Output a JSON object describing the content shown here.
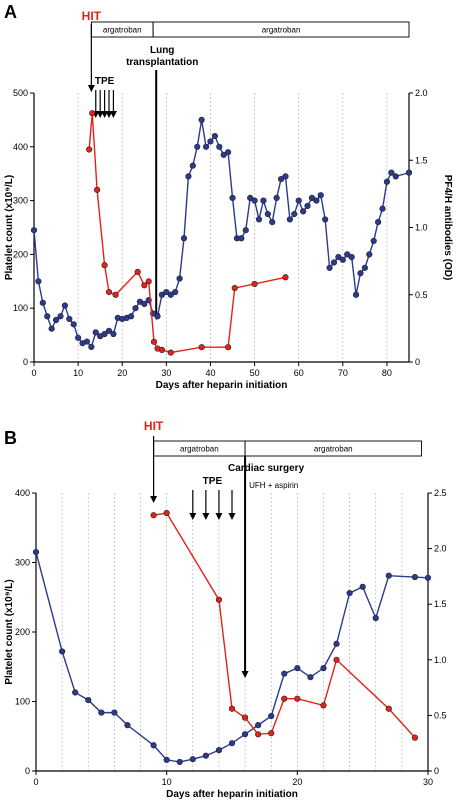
{
  "colors": {
    "platelet": "#2b3a8f",
    "antibody": "#e32219",
    "grid": "#b5b5b5",
    "hit": "#e32219"
  },
  "chart_data": [
    {
      "type": "line",
      "panel": "A",
      "xlabel": "Days after heparin initiation",
      "ylabel_left": "Platelet count (x10⁹/L)",
      "ylabel_right": "PF4/H antibodies (OD)",
      "xlim": [
        0,
        85
      ],
      "xticks": [
        0,
        10,
        20,
        30,
        40,
        50,
        60,
        70,
        80
      ],
      "ylim_left": [
        0,
        500
      ],
      "yticks_left": [
        0,
        100,
        200,
        300,
        400,
        500
      ],
      "ylim_right": [
        0,
        2.0
      ],
      "yticks_right": [
        "0",
        "0.5",
        "1.0",
        "1.5",
        "2.0"
      ],
      "grid_x": [
        10,
        20,
        30,
        40,
        50,
        60,
        70,
        80
      ],
      "treatment_bars": [
        {
          "label": "argatroban",
          "from": 13,
          "to": 27
        },
        {
          "label": "argatroban",
          "from": 27,
          "to": 85
        }
      ],
      "annotations": {
        "hit_label": "HIT",
        "hit_day": 13,
        "tpe_label": "TPE",
        "tpe_days": [
          14,
          15,
          16,
          17,
          18
        ],
        "surgery_label_1": "Lung",
        "surgery_label_2": "transplantation",
        "surgery_day": 27.7
      },
      "series": [
        {
          "role": "platelet",
          "axis": "left",
          "x": [
            0,
            1,
            2,
            3,
            4,
            5,
            6,
            7,
            8,
            9,
            10,
            11,
            12,
            13,
            14,
            15,
            16,
            17,
            18,
            19,
            20,
            21,
            22,
            23,
            24,
            25,
            26,
            27,
            28,
            29,
            30,
            31,
            32,
            33,
            34,
            35,
            36,
            37,
            38,
            39,
            40,
            41,
            42,
            43,
            44,
            45,
            46,
            47,
            48,
            49,
            50,
            51,
            52,
            53,
            54,
            55,
            56,
            57,
            58,
            59,
            60,
            61,
            62,
            63,
            64,
            65,
            66,
            67,
            68,
            69,
            70,
            71,
            72,
            73,
            74,
            75,
            76,
            77,
            78,
            79,
            80,
            81,
            82,
            85
          ],
          "values": [
            245,
            150,
            110,
            85,
            62,
            78,
            85,
            105,
            80,
            70,
            45,
            35,
            38,
            28,
            55,
            48,
            52,
            58,
            52,
            82,
            80,
            82,
            85,
            100,
            112,
            108,
            115,
            90,
            85,
            125,
            130,
            125,
            130,
            155,
            230,
            345,
            365,
            400,
            450,
            400,
            410,
            420,
            400,
            385,
            390,
            305,
            230,
            230,
            245,
            305,
            300,
            265,
            300,
            275,
            260,
            305,
            340,
            345,
            265,
            275,
            300,
            280,
            290,
            305,
            300,
            310,
            265,
            175,
            185,
            195,
            190,
            200,
            195,
            125,
            165,
            175,
            200,
            225,
            260,
            285,
            335,
            352,
            345,
            352
          ]
        },
        {
          "role": "antibody",
          "axis": "right",
          "x": [
            12.5,
            13.2,
            14.3,
            16,
            17,
            18.5,
            23.5,
            25,
            26,
            27.2,
            28,
            29,
            31,
            38,
            44,
            45.5,
            50,
            57
          ],
          "values": [
            1.58,
            1.85,
            1.28,
            0.72,
            0.52,
            0.5,
            0.67,
            0.57,
            0.6,
            0.15,
            0.1,
            0.09,
            0.07,
            0.11,
            0.11,
            0.55,
            0.58,
            0.63
          ]
        }
      ]
    },
    {
      "type": "line",
      "panel": "B",
      "xlabel": "Days after heparin initiation",
      "ylabel_left": "Platelet count (x10⁹/L)",
      "ylabel_right": "PF4/H antibodies (OD)",
      "xlim": [
        0,
        30
      ],
      "xticks": [
        0,
        10,
        20,
        30
      ],
      "ylim_left": [
        0,
        400
      ],
      "yticks_left": [
        0,
        100,
        200,
        300,
        400
      ],
      "ylim_right": [
        0,
        2.5
      ],
      "yticks_right": [
        "0",
        "0.5",
        "1.0",
        "1.5",
        "2.0",
        "2.5"
      ],
      "grid_x": [
        2,
        4,
        6,
        8,
        10,
        12,
        14,
        16,
        18,
        20,
        22,
        24,
        26,
        28
      ],
      "treatment_bars": [
        {
          "label": "argatroban",
          "from": 9,
          "to": 16
        },
        {
          "label": "argatroban",
          "from": 16,
          "to": 29.5
        }
      ],
      "annotations": {
        "hit_label": "HIT",
        "hit_day": 9,
        "tpe_label": "TPE",
        "tpe_days": [
          12,
          13,
          14,
          15
        ],
        "surgery_label": "Cardiac surgery",
        "surgery_day": 16,
        "ufh_label": "UFH + aspirin"
      },
      "series": [
        {
          "role": "platelet",
          "axis": "left",
          "x": [
            0,
            2,
            3,
            4,
            5,
            6,
            7,
            9,
            10,
            11,
            12,
            13,
            14,
            15,
            16,
            17,
            18,
            19,
            20,
            21,
            22,
            23,
            24,
            25,
            26,
            27,
            29,
            30
          ],
          "values": [
            315,
            172,
            113,
            102,
            84,
            84,
            66,
            37,
            16,
            13,
            17,
            22,
            30,
            40,
            53,
            66,
            79,
            140,
            148,
            135,
            148,
            183,
            256,
            265,
            220,
            281,
            279,
            278
          ]
        },
        {
          "role": "antibody",
          "axis": "right",
          "x": [
            9,
            10,
            14,
            15,
            16,
            17,
            18,
            19,
            20,
            22,
            23,
            27,
            29
          ],
          "values": [
            2.3,
            2.32,
            1.54,
            0.56,
            0.48,
            0.33,
            0.34,
            0.65,
            0.65,
            0.59,
            1.0,
            0.56,
            0.3
          ]
        }
      ]
    }
  ]
}
